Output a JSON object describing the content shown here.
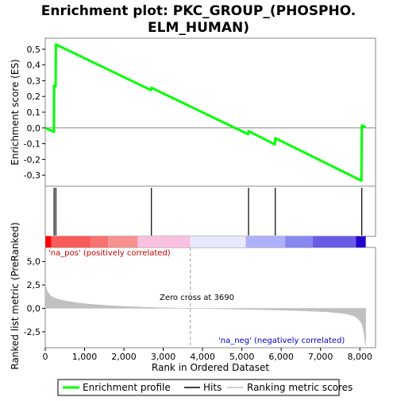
{
  "chart_data": {
    "type": "line",
    "title": "Enrichment plot: PKC_GROUP_(PHOSPHO.ELM_HUMAN)",
    "title_lines": [
      "Enrichment plot: PKC_GROUP_(PHOSPHO.",
      "ELM_HUMAN)"
    ],
    "top_panel": {
      "ylabel": "Enrichment score (ES)",
      "ylim": [
        -0.37,
        0.57
      ],
      "yticks": [
        0.5,
        0.4,
        0.3,
        0.2,
        0.1,
        0.0,
        -0.1,
        -0.2,
        -0.3
      ],
      "ytick_labels": [
        "0,5",
        "0,4",
        "0,3",
        "0,2",
        "0,1",
        "0,0",
        "-0,1",
        "-0,2",
        "-0,3"
      ],
      "series": [
        {
          "name": "Enrichment profile",
          "color": "#00ff00",
          "x": [
            0,
            220,
            225,
            265,
            270,
            2690,
            2700,
            5160,
            5170,
            5840,
            5850,
            8040,
            8050,
            8150
          ],
          "y": [
            0.0,
            -0.025,
            0.27,
            0.265,
            0.53,
            0.24,
            0.255,
            -0.04,
            -0.02,
            -0.105,
            -0.065,
            -0.335,
            0.015,
            0.005
          ]
        }
      ]
    },
    "hits": {
      "name": "Hits",
      "color": "#000000",
      "x": [
        225,
        270,
        2700,
        5170,
        5850,
        8050
      ]
    },
    "color_bar": {
      "segments": [
        {
          "x0": 0,
          "x1": 150,
          "color": "#ff0000"
        },
        {
          "x0": 150,
          "x1": 1150,
          "color": "#f95a5a"
        },
        {
          "x0": 1150,
          "x1": 1600,
          "color": "#f87272"
        },
        {
          "x0": 1600,
          "x1": 2350,
          "color": "#f99090"
        },
        {
          "x0": 2350,
          "x1": 3690,
          "color": "#fac0e0"
        },
        {
          "x0": 3690,
          "x1": 5100,
          "color": "#e8e8ff"
        },
        {
          "x0": 5100,
          "x1": 6100,
          "color": "#b0b0fa"
        },
        {
          "x0": 6100,
          "x1": 6800,
          "color": "#8888f2"
        },
        {
          "x0": 6800,
          "x1": 7900,
          "color": "#6a5ae8"
        },
        {
          "x0": 7900,
          "x1": 8150,
          "color": "#2200cc"
        }
      ]
    },
    "bottom_panel": {
      "ylabel": "Ranked list metric (PreRanked)",
      "xlabel": "Rank in Ordered Dataset",
      "ylim": [
        -4.2,
        6.5
      ],
      "yticks": [
        5.0,
        2.5,
        0.0,
        -2.5
      ],
      "ytick_labels": [
        "5,0",
        "2,5",
        "0,0",
        "-2,5"
      ],
      "xlim": [
        0,
        8400
      ],
      "xticks": [
        0,
        1000,
        2000,
        3000,
        4000,
        5000,
        6000,
        7000,
        8000
      ],
      "xtick_labels": [
        "0",
        "1,000",
        "2,000",
        "3,000",
        "4,000",
        "5,000",
        "6,000",
        "7,000",
        "8,000"
      ],
      "metric": {
        "name": "Ranking metric scores",
        "color": "#c0c0c0",
        "x": [
          0,
          50,
          150,
          300,
          500,
          800,
          1200,
          1800,
          2500,
          3200,
          3690,
          4500,
          5500,
          6500,
          7200,
          7600,
          7850,
          7950,
          8050,
          8100,
          8150
        ],
        "y": [
          2.7,
          1.8,
          1.3,
          1.0,
          0.8,
          0.6,
          0.42,
          0.25,
          0.12,
          0.04,
          0.0,
          -0.06,
          -0.14,
          -0.25,
          -0.38,
          -0.55,
          -0.8,
          -1.1,
          -1.6,
          -2.5,
          -4.0
        ]
      },
      "zero_cross": 3690,
      "annotations": {
        "zero_cross": "Zero cross at 3690",
        "pos": "'na_pos' (positively correlated)",
        "neg": "'na_neg' (negatively correlated)"
      }
    },
    "legend": {
      "placement": "bottom",
      "entries": [
        {
          "label": "Enrichment profile",
          "color": "#00ff00"
        },
        {
          "label": "Hits",
          "color": "#000000"
        },
        {
          "label": "Ranking metric scores",
          "color": "#c0c0c0"
        }
      ]
    }
  }
}
